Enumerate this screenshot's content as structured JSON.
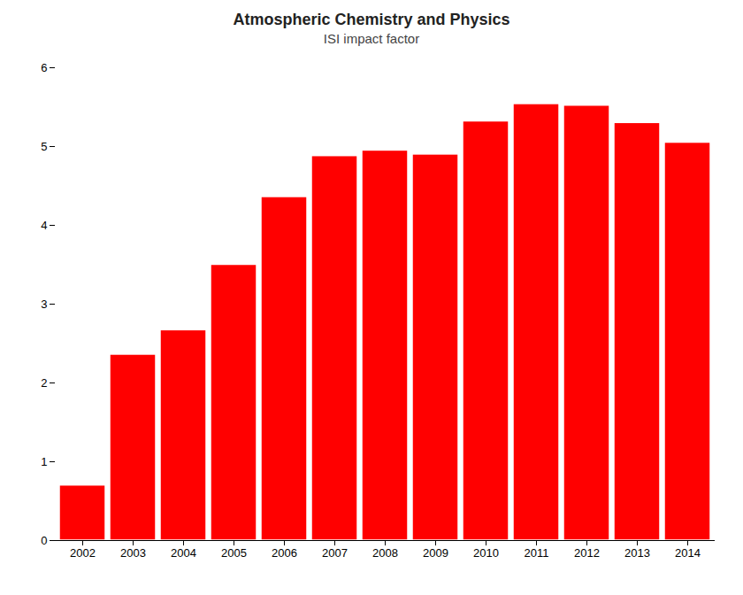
{
  "chart_data": {
    "type": "bar",
    "title": "Atmospheric Chemistry and Physics",
    "subtitle": "ISI impact factor",
    "categories": [
      "2002",
      "2003",
      "2004",
      "2005",
      "2006",
      "2007",
      "2008",
      "2009",
      "2010",
      "2011",
      "2012",
      "2013",
      "2014"
    ],
    "values": [
      0.7,
      2.36,
      2.67,
      3.5,
      4.36,
      4.88,
      4.95,
      4.9,
      5.32,
      5.54,
      5.52,
      5.3,
      5.05
    ],
    "color": "#ff0000",
    "ylim": [
      0,
      6
    ],
    "yticks": [
      0,
      1,
      2,
      3,
      4,
      5,
      6
    ],
    "grid": false
  }
}
